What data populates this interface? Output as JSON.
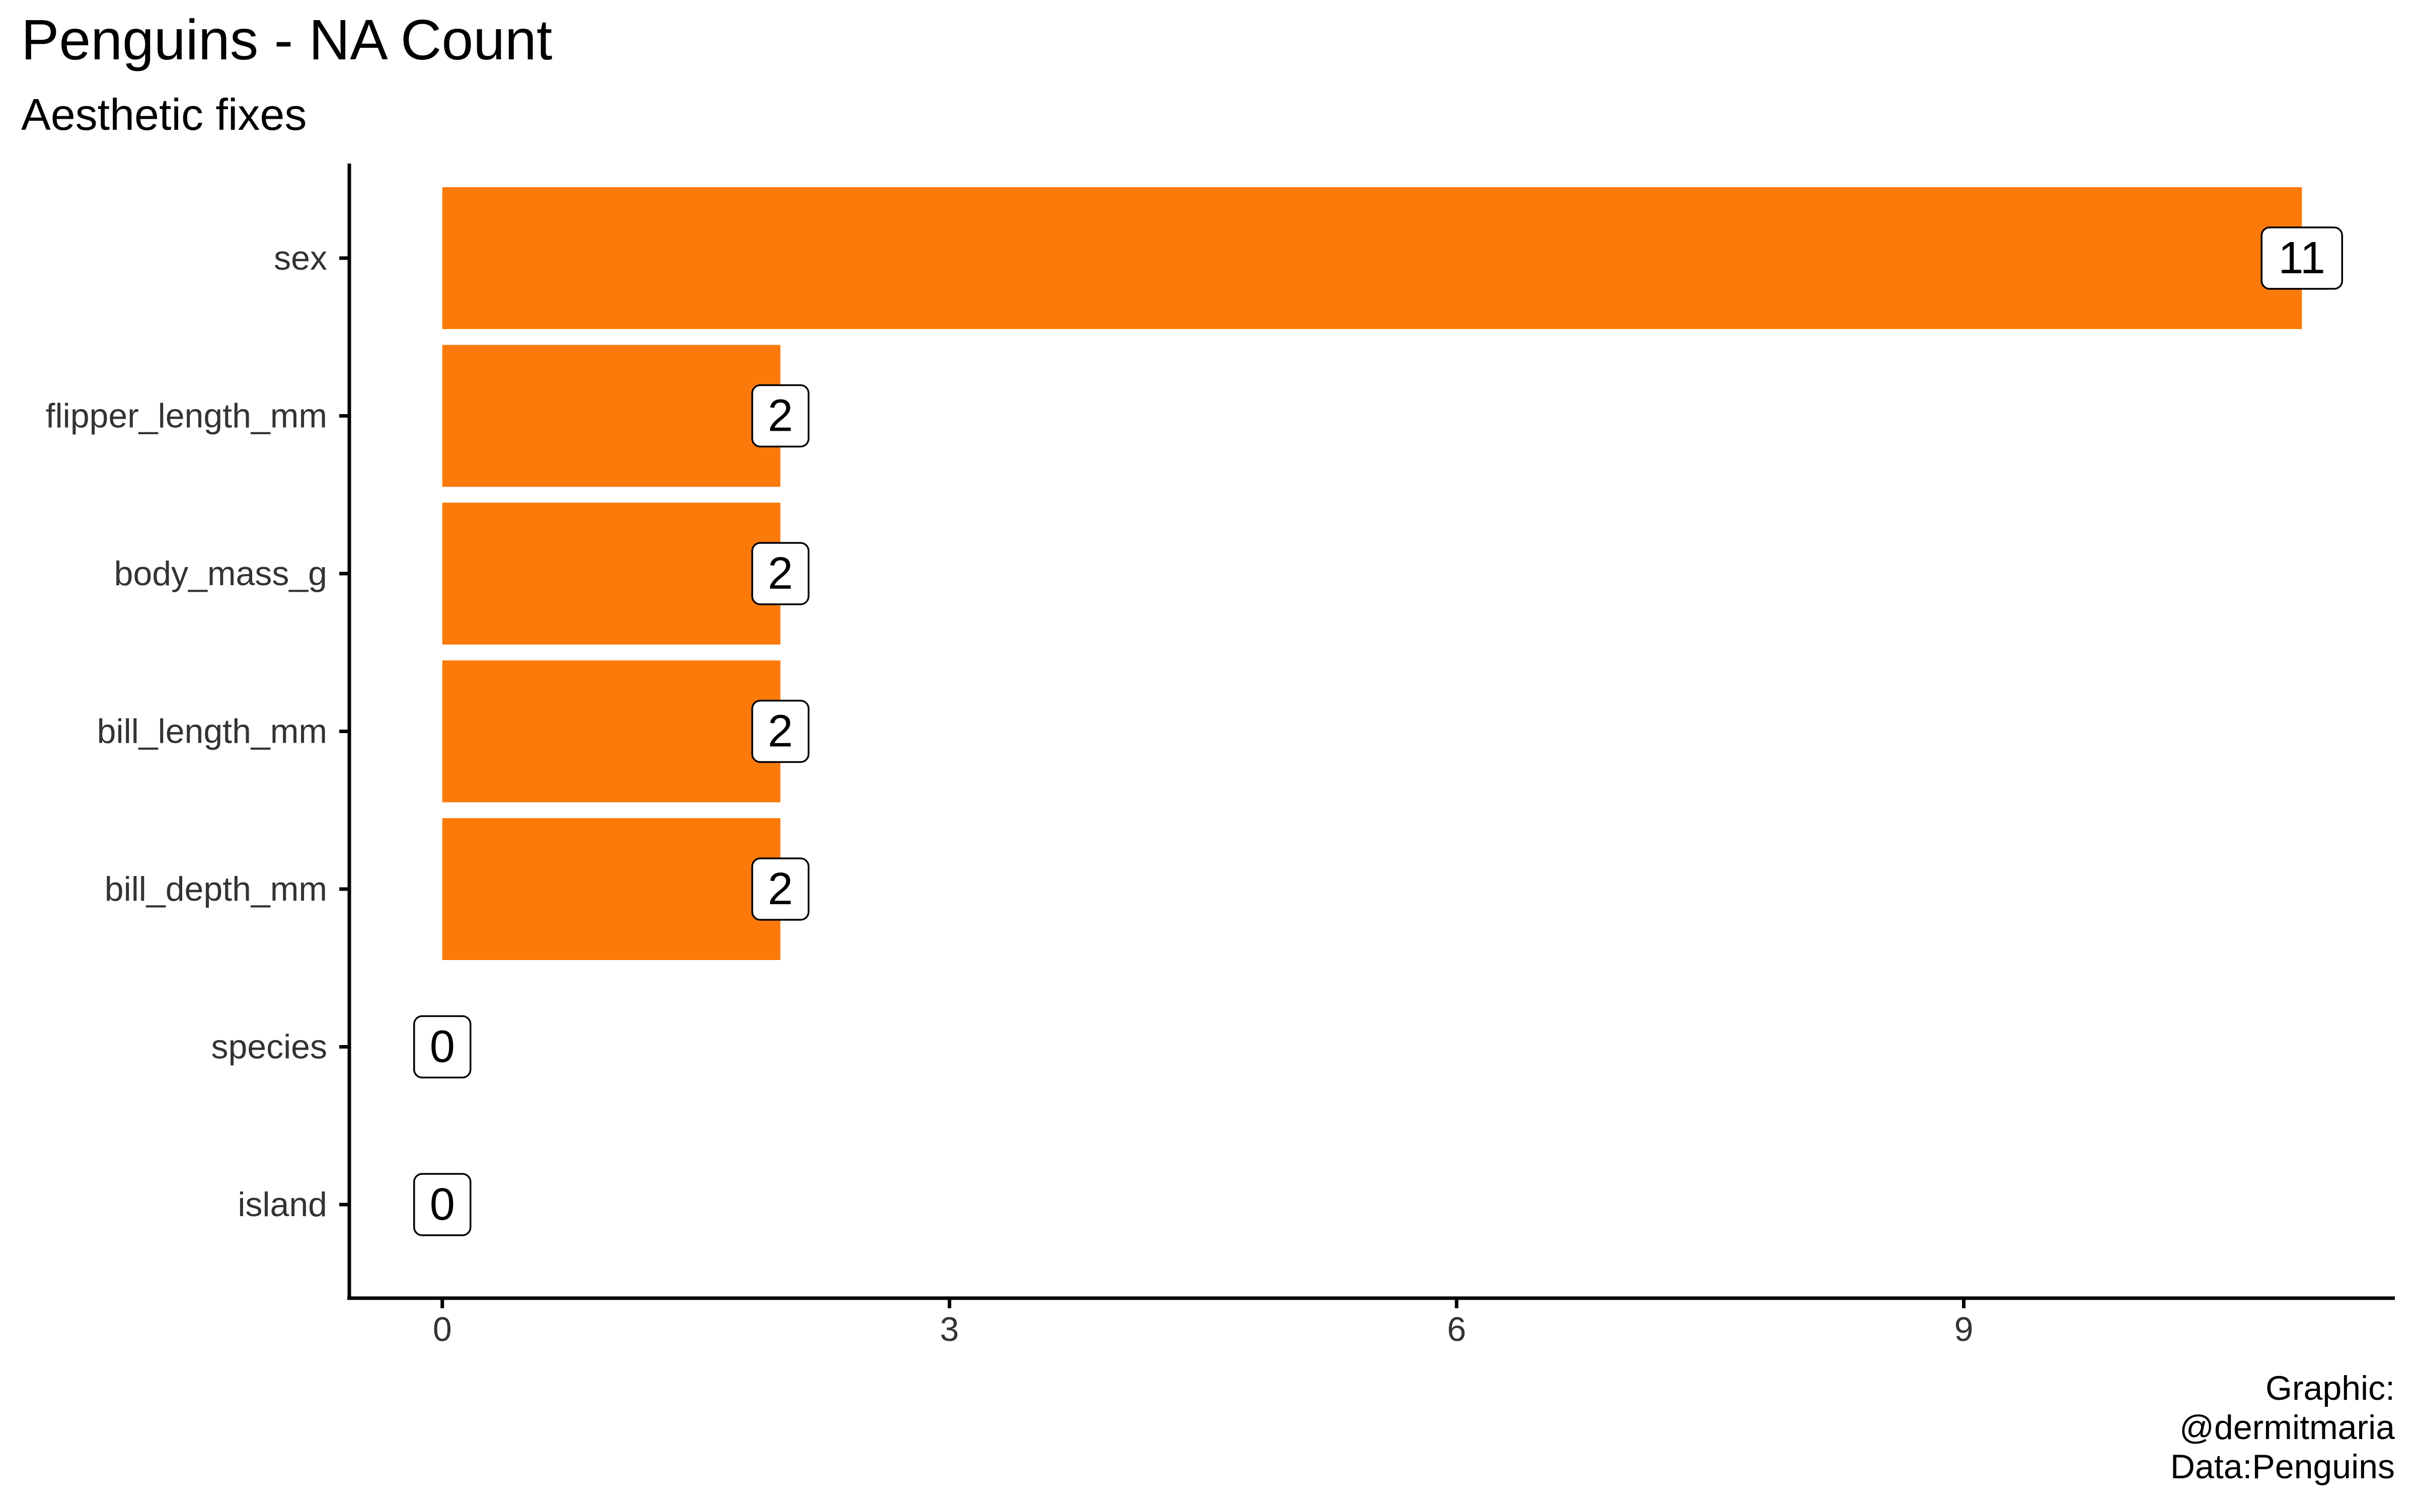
{
  "chart_data": {
    "type": "bar",
    "orientation": "horizontal",
    "title": "Penguins - NA Count",
    "subtitle": "Aesthetic fixes",
    "caption": [
      "Graphic:",
      "@dermitmaria",
      "Data:Penguins"
    ],
    "categories": [
      "sex",
      "flipper_length_mm",
      "body_mass_g",
      "bill_length_mm",
      "bill_depth_mm",
      "species",
      "island"
    ],
    "values": [
      11,
      2,
      2,
      2,
      2,
      0,
      0
    ],
    "data_labels": [
      "11",
      "2",
      "2",
      "2",
      "2",
      "0",
      "0"
    ],
    "xlim": [
      -0.55,
      11.55
    ],
    "xticks": [
      0,
      3,
      6,
      9
    ],
    "xtick_labels": [
      "0",
      "3",
      "6",
      "9"
    ],
    "xlabel": "",
    "ylabel": "",
    "grid": false,
    "legend": "none",
    "bar_color": "#FB7A0A"
  }
}
